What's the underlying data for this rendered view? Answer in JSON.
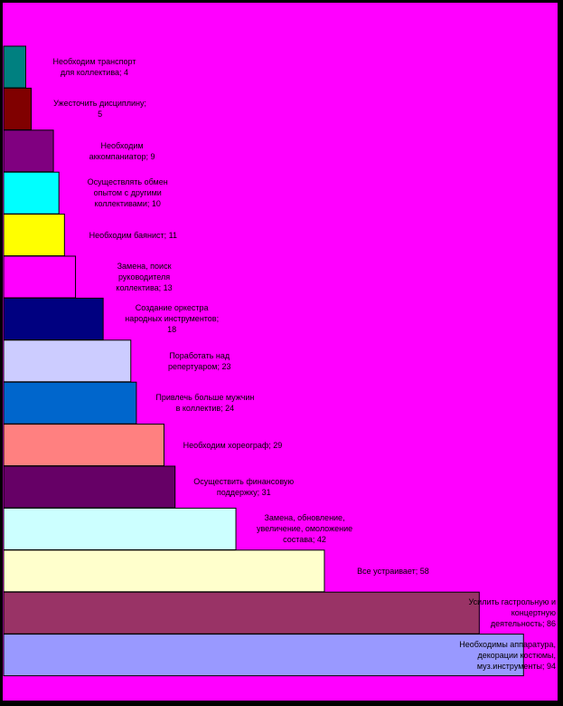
{
  "chart_data": {
    "type": "bar",
    "orientation": "horizontal",
    "background": "#ff00ff",
    "border_color": "#000000",
    "categories": [
      "Необходим транспорт\nдля коллектива",
      "Ужесточить дисциплину",
      "Необходим\nаккомпаниатор",
      "Осуществлять обмен\nопытом с другими\nколлективами",
      "Необходим баянист",
      "Замена, поиск\nруководителя\nколлектива",
      "Создание оркестра\nнародных инструментов",
      "Поработать над\nрепертуаром",
      "Привлечь больше мужчин\nв коллектив",
      "Необходим хореограф",
      "Осуществить финансовую\nподдержку",
      "Замена, обновление,\nувеличение, омоложение\nсостава",
      "Все устраивает",
      "Усилить гастрольную и\nконцертную\nдеятельность",
      "Необходимы аппаратура,\nдекорации костюмы,\nмуз.инструменты"
    ],
    "values": [
      4,
      5,
      9,
      10,
      11,
      13,
      18,
      23,
      24,
      29,
      31,
      42,
      58,
      86,
      94
    ],
    "labels": [
      "Необходим транспорт\nдля коллектива; 4",
      "Ужесточить дисциплину;\n5",
      "Необходим\nаккомпаниатор; 9",
      "Осуществлять обмен\nопытом с другими\nколлективами; 10",
      "Необходим баянист; 11",
      "Замена, поиск\nруководителя\nколлектива; 13",
      "Создание оркестра\nнародных инструментов;\n18",
      "Поработать над\nрепертуаром; 23",
      "Привлечь больше мужчин\nв коллектив; 24",
      "Необходим хореограф; 29",
      "Осуществить финансовую\nподдержку; 31",
      "Замена, обновление,\nувеличение, омоложение\nсостава; 42",
      "Все устраивает; 58",
      "Усилить гастрольную и\nконцертную\nдеятельность; 86",
      "Необходимы аппаратура,\nдекорации костюмы,\nмуз.инструменты; 94"
    ],
    "colors": [
      "#008080",
      "#800000",
      "#800080",
      "#00ffff",
      "#ffff00",
      "#ff00ff",
      "#000080",
      "#ccccff",
      "#0066cc",
      "#ff8080",
      "#660066",
      "#ccffff",
      "#ffffcc",
      "#993366",
      "#9999ff"
    ],
    "xlim": [
      0,
      100
    ],
    "grid": false,
    "legend": "none",
    "title": "",
    "xlabel": "",
    "ylabel": ""
  }
}
